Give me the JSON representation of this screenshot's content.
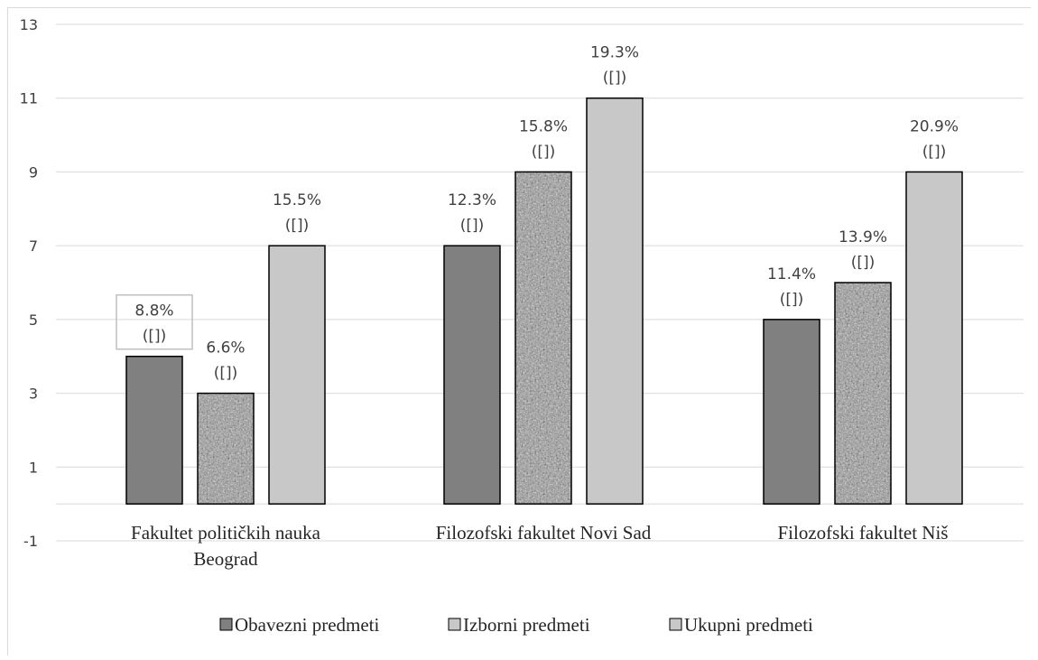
{
  "colors": {
    "obavezni": "#808080",
    "izborni_base": "#9a9a9a",
    "ukupni": "#c8c8c8",
    "grid": "#d9d9d9"
  },
  "chart_data": {
    "type": "bar",
    "ylim": [
      -1,
      13
    ],
    "yticks": [
      -1,
      1,
      3,
      5,
      7,
      9,
      11,
      13
    ],
    "categories": [
      [
        "Fakultet političkih nauka",
        "Beograd"
      ],
      [
        "Filozofski fakultet Novi Sad"
      ],
      [
        "Filozofski fakultet Niš"
      ]
    ],
    "series": [
      {
        "name": "Obavezni predmeti",
        "values": [
          4,
          7,
          5
        ],
        "labels": [
          [
            "8.8%",
            "([])"
          ],
          [
            "12.3%",
            "([])"
          ],
          [
            "11.4%",
            "([])"
          ]
        ]
      },
      {
        "name": "Izborni predmeti",
        "values": [
          3,
          9,
          6
        ],
        "labels": [
          [
            "6.6%",
            "([])"
          ],
          [
            "15.8%",
            "([])"
          ],
          [
            "13.9%",
            "([])"
          ]
        ]
      },
      {
        "name": "Ukupni predmeti",
        "values": [
          7,
          11,
          9
        ],
        "labels": [
          [
            "15.5%",
            "([])"
          ],
          [
            "19.3%",
            "([])"
          ],
          [
            "20.9%",
            "([])"
          ]
        ]
      }
    ],
    "legend_position": "bottom",
    "grid": true
  }
}
